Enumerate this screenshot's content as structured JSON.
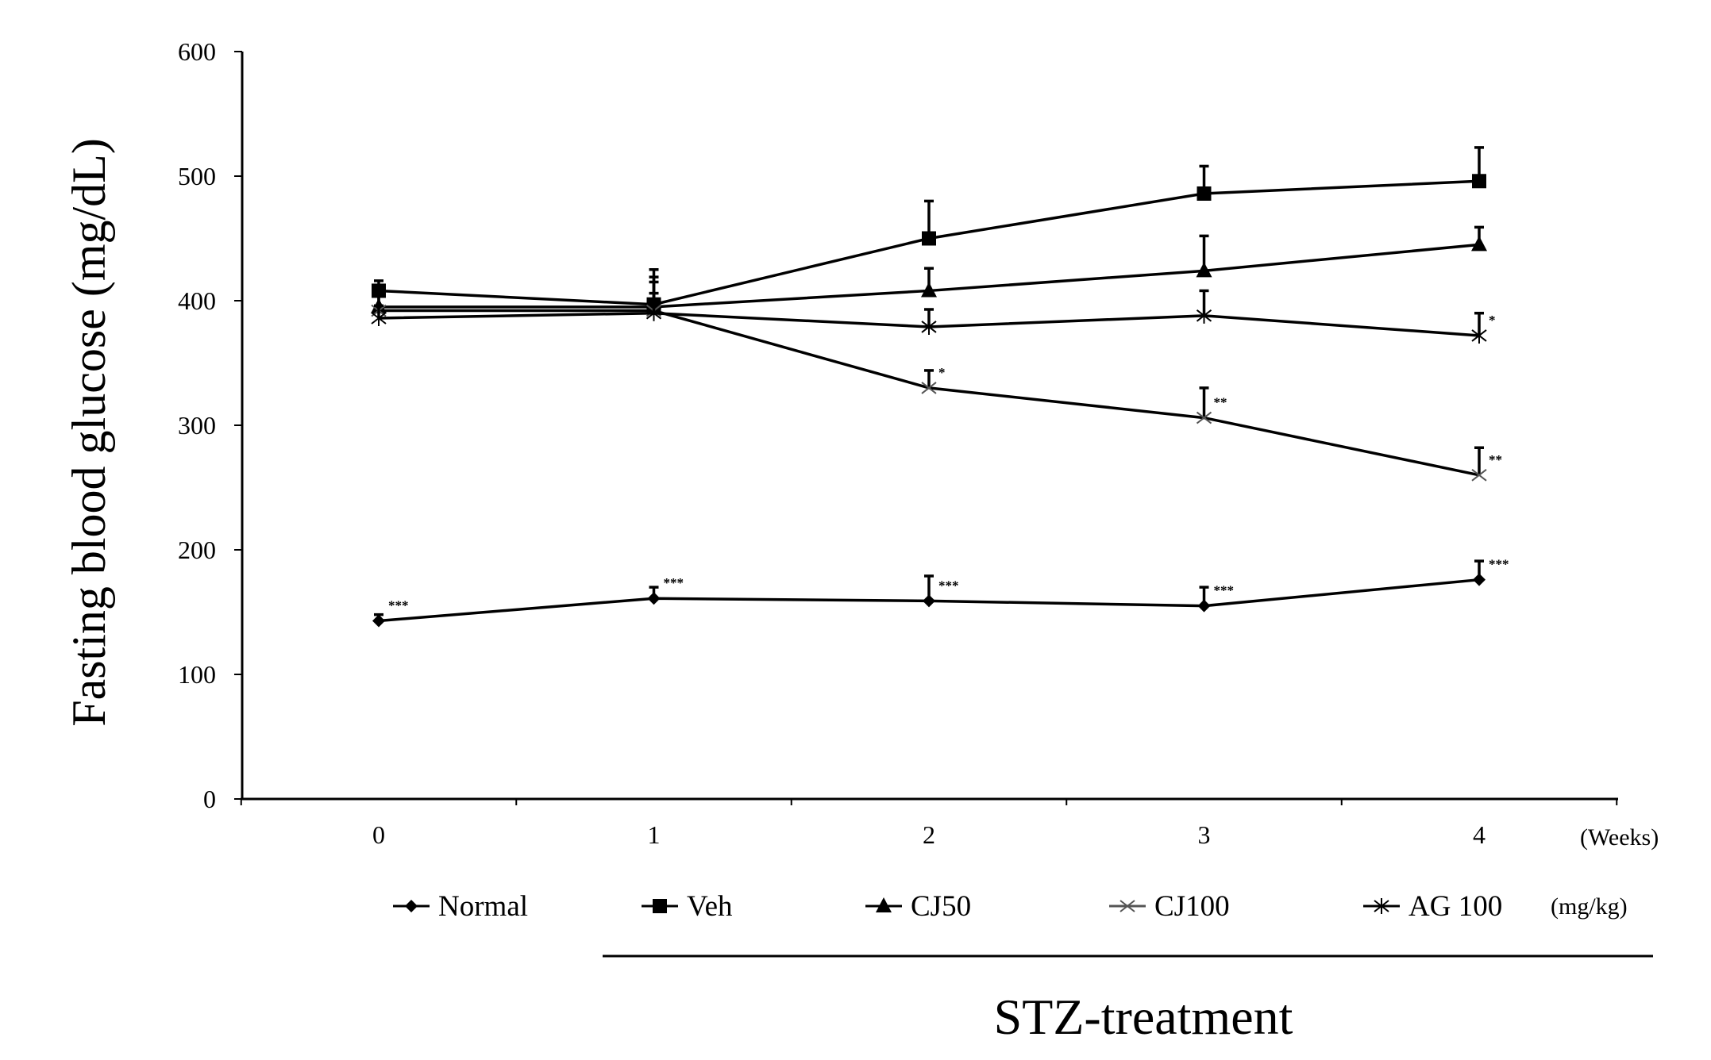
{
  "chart_data": {
    "type": "line",
    "title": "",
    "xlabel": "(Weeks)",
    "ylabel": "Fasting blood glucose (mg/dL)",
    "x": [
      0,
      1,
      2,
      3,
      4
    ],
    "x_tick_labels": [
      "0",
      "1",
      "2",
      "3",
      "4"
    ],
    "ylim": [
      0,
      600
    ],
    "y_ticks": [
      0,
      100,
      200,
      300,
      400,
      500,
      600
    ],
    "y_tick_labels": [
      "0",
      "100",
      "200",
      "300",
      "400",
      "500",
      "600"
    ],
    "legend_unit": "(mg/kg)",
    "group_label": "STZ-treatment",
    "series": [
      {
        "name": "Normal",
        "marker": "diamond",
        "values": [
          143,
          161,
          159,
          155,
          176
        ],
        "errors": [
          5,
          9,
          20,
          15,
          15
        ],
        "annotations": [
          "***",
          "***",
          "***",
          "***",
          "***"
        ]
      },
      {
        "name": "Veh",
        "marker": "square",
        "values": [
          408,
          397,
          450,
          486,
          496
        ],
        "errors": [
          8,
          22,
          30,
          22,
          27
        ],
        "annotations": [
          "",
          "",
          "",
          "",
          ""
        ]
      },
      {
        "name": "CJ50",
        "marker": "triangle",
        "values": [
          395,
          395,
          408,
          424,
          445
        ],
        "errors": [
          12,
          20,
          18,
          28,
          14
        ],
        "annotations": [
          "",
          "",
          "",
          "",
          ""
        ]
      },
      {
        "name": "CJ100",
        "marker": "x",
        "values": [
          392,
          392,
          330,
          306,
          260
        ],
        "errors": [
          12,
          14,
          14,
          24,
          22
        ],
        "annotations": [
          "",
          "",
          "*",
          "**",
          "**"
        ]
      },
      {
        "name": "AG 100",
        "marker": "asterisk",
        "values": [
          386,
          390,
          379,
          388,
          372
        ],
        "errors": [
          10,
          35,
          14,
          20,
          18
        ],
        "annotations": [
          "",
          "",
          "",
          "",
          "*"
        ]
      }
    ]
  }
}
